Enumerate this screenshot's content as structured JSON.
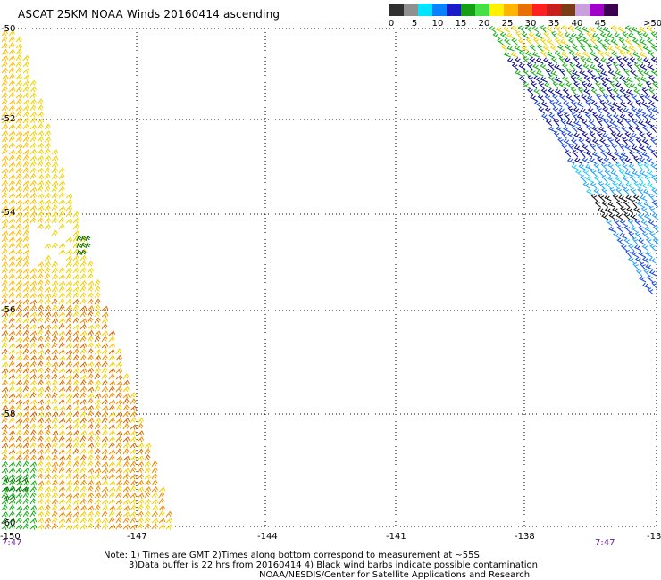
{
  "title": "ASCAT 25KM NOAA Winds 20160414 ascending",
  "legend": {
    "unit_label": ">50 knots",
    "ticks": [
      "0",
      "5",
      "10",
      "15",
      "20",
      "25",
      "30",
      "35",
      "40",
      "45"
    ],
    "colors": [
      "#303030",
      "#909090",
      "#00e5ff",
      "#0a82ff",
      "#1a1ac8",
      "#14a014",
      "#46e046",
      "#fff200",
      "#ffb400",
      "#e87000",
      "#ff2020",
      "#c81e1e",
      "#7a3c14",
      "#c8a0dc",
      "#a000c8",
      "#3c0050"
    ]
  },
  "axes": {
    "lat_labels": [
      "-50",
      "-52",
      "-54",
      "-56",
      "-58",
      "-60"
    ],
    "lon_labels": [
      "-150",
      "-147",
      "-144",
      "-141",
      "-138",
      "-13"
    ],
    "left_time": "7:47",
    "right_time": "7:47"
  },
  "wind_colors": {
    "yellow": "#f2d200",
    "yellow_orange": "#ffbe00",
    "orange": "#f08c00",
    "dark_orange": "#d86a00",
    "green": "#18b018",
    "dark_green": "#087008",
    "light_blue": "#20a0ff",
    "blue": "#1848e0",
    "navy": "#0c0c90",
    "cyan": "#20d0f0",
    "black": "#101010",
    "grid": "#000000"
  },
  "notes": {
    "line1": "Note: 1) Times are GMT 2)Times along bottom correspond to measurement at ~55S",
    "line2": "3)Data buffer is 22 hrs from 20160414 4) Black wind barbs indicate possible contamination",
    "line3": "NOAA/NESDIS/Center for Satellite Applications and Research"
  }
}
